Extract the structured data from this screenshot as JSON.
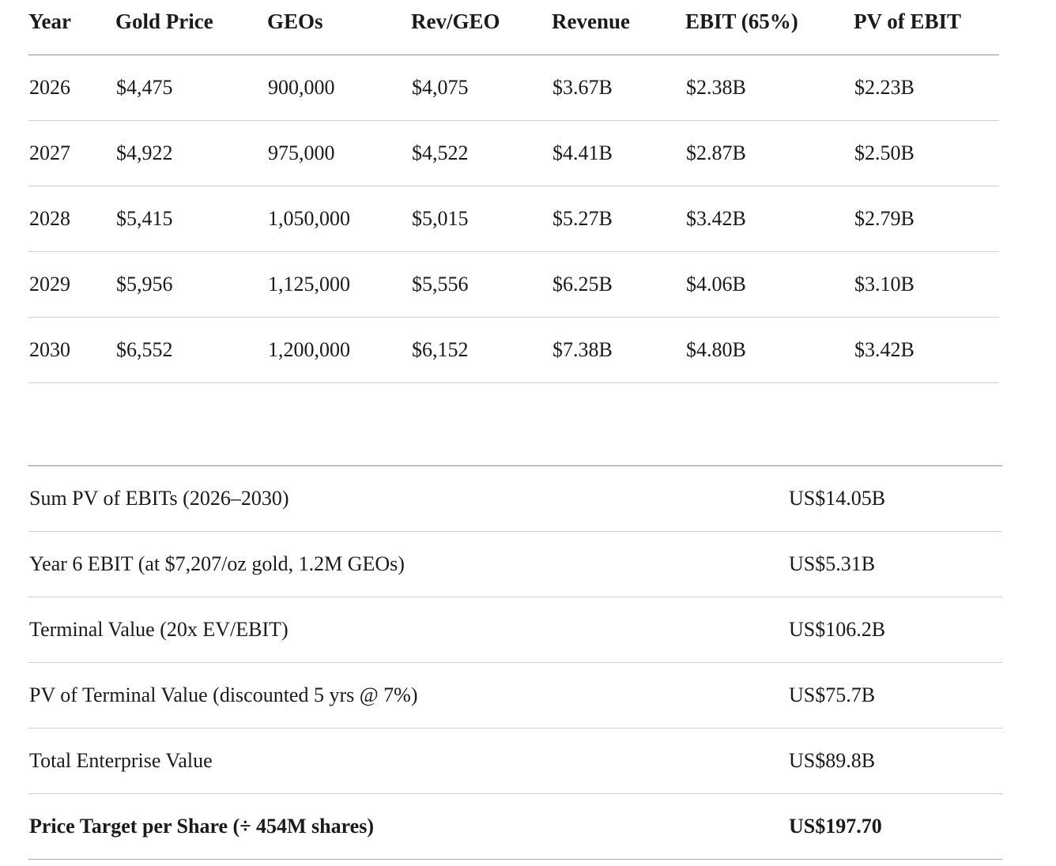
{
  "colors": {
    "background": "#ffffff",
    "text": "#1a1a1a",
    "rule_strong": "#8f8f8f",
    "rule_light": "#cfcfcf"
  },
  "projection_table": {
    "columns": [
      "Year",
      "Gold Price",
      "GEOs",
      "Rev/GEO",
      "Revenue",
      "EBIT (65%)",
      "PV of EBIT"
    ],
    "rows": [
      [
        "2026",
        "$4,475",
        "900,000",
        "$4,075",
        "$3.67B",
        "$2.38B",
        "$2.23B"
      ],
      [
        "2027",
        "$4,922",
        "975,000",
        "$4,522",
        "$4.41B",
        "$2.87B",
        "$2.50B"
      ],
      [
        "2028",
        "$5,415",
        "1,050,000",
        "$5,015",
        "$5.27B",
        "$3.42B",
        "$2.79B"
      ],
      [
        "2029",
        "$5,956",
        "1,125,000",
        "$5,556",
        "$6.25B",
        "$4.06B",
        "$3.10B"
      ],
      [
        "2030",
        "$6,552",
        "1,200,000",
        "$6,152",
        "$7.38B",
        "$4.80B",
        "$3.42B"
      ]
    ]
  },
  "summary_table": {
    "rows": [
      {
        "label": "Sum PV of EBITs (2026–2030)",
        "value": "US$14.05B"
      },
      {
        "label": "Year 6 EBIT (at $7,207/oz gold, 1.2M GEOs)",
        "value": "US$5.31B"
      },
      {
        "label": "Terminal Value (20x EV/EBIT)",
        "value": "US$106.2B"
      },
      {
        "label": "PV of Terminal Value (discounted 5 yrs @ 7%)",
        "value": "US$75.7B"
      },
      {
        "label": "Total Enterprise Value",
        "value": "US$89.8B"
      },
      {
        "label": "Price Target per Share (÷ 454M shares)",
        "value": "US$197.70"
      }
    ]
  }
}
